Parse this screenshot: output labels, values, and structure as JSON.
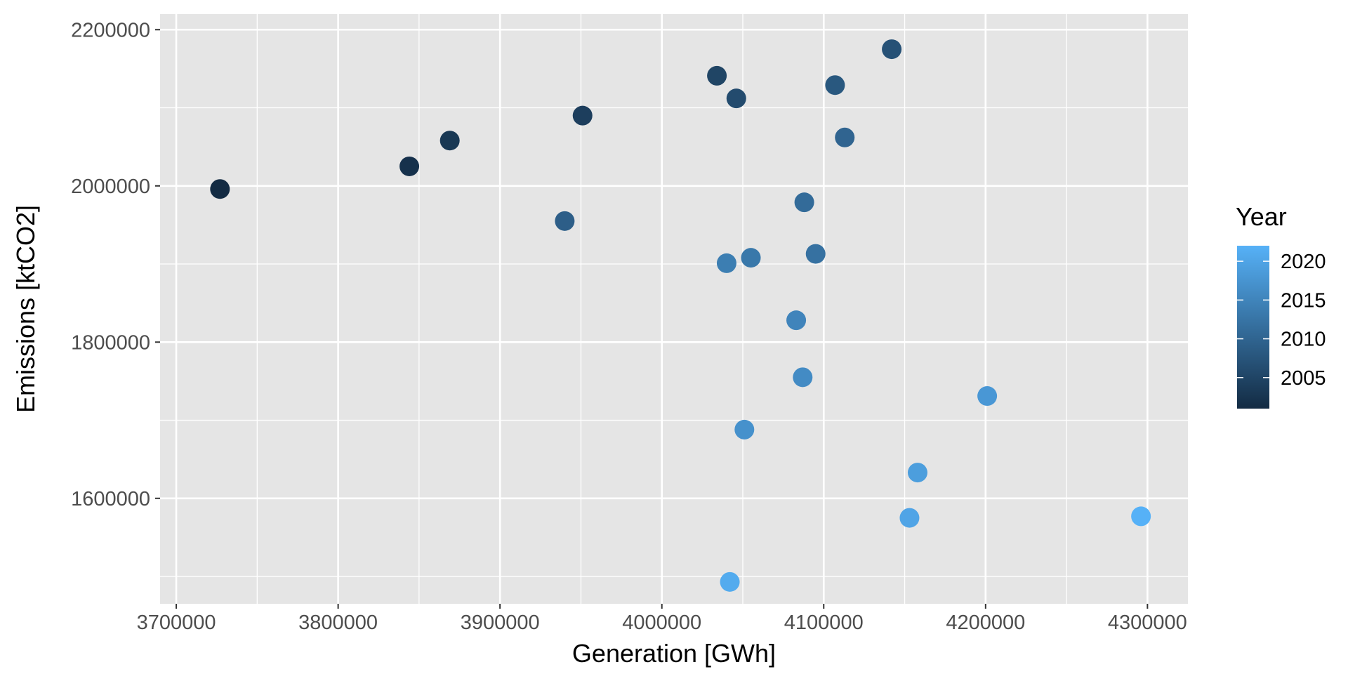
{
  "chart_data": {
    "type": "scatter",
    "title": "",
    "xlabel": "Generation [GWh]",
    "ylabel": "Emissions [ktCO2]",
    "xlim": [
      3690000,
      4325000
    ],
    "ylim": [
      1465000,
      2220000
    ],
    "x_ticks": [
      3700000,
      3800000,
      3900000,
      4000000,
      4100000,
      4200000,
      4300000
    ],
    "x_tick_labels": [
      "3700000",
      "3800000",
      "3900000",
      "4000000",
      "4100000",
      "4200000",
      "4300000"
    ],
    "y_ticks": [
      1600000,
      1800000,
      2000000,
      2200000
    ],
    "y_tick_labels": [
      "1600000",
      "1800000",
      "2000000",
      "2200000"
    ],
    "grid": true,
    "background": "#e5e5e5",
    "grid_color": "#ffffff",
    "color_scale": {
      "low": "#132b43",
      "high": "#56b1f7",
      "range": [
        2001,
        2022
      ]
    },
    "legend": {
      "title": "Year",
      "placement": "right",
      "ticks": [
        2005,
        2010,
        2015,
        2020
      ],
      "tick_labels": [
        "2005",
        "2010",
        "2015",
        "2020"
      ]
    },
    "points": [
      {
        "x": 3727000,
        "y": 1996000,
        "year": 2001
      },
      {
        "x": 3844000,
        "y": 2025000,
        "year": 2002
      },
      {
        "x": 3869000,
        "y": 2058000,
        "year": 2003
      },
      {
        "x": 3951000,
        "y": 2090000,
        "year": 2004
      },
      {
        "x": 4034000,
        "y": 2141000,
        "year": 2005
      },
      {
        "x": 4046000,
        "y": 2112000,
        "year": 2006
      },
      {
        "x": 4142000,
        "y": 2175000,
        "year": 2007
      },
      {
        "x": 4107000,
        "y": 2129000,
        "year": 2008
      },
      {
        "x": 3940000,
        "y": 1955000,
        "year": 2009
      },
      {
        "x": 4113000,
        "y": 2062000,
        "year": 2010
      },
      {
        "x": 4088000,
        "y": 1979000,
        "year": 2011
      },
      {
        "x": 4095000,
        "y": 1913000,
        "year": 2012
      },
      {
        "x": 4055000,
        "y": 1908000,
        "year": 2013
      },
      {
        "x": 4040000,
        "y": 1901000,
        "year": 2014
      },
      {
        "x": 4083000,
        "y": 1828000,
        "year": 2015
      },
      {
        "x": 4087000,
        "y": 1755000,
        "year": 2016
      },
      {
        "x": 4051000,
        "y": 1688000,
        "year": 2017
      },
      {
        "x": 4201000,
        "y": 1731000,
        "year": 2018
      },
      {
        "x": 4158000,
        "y": 1633000,
        "year": 2019
      },
      {
        "x": 4153000,
        "y": 1575000,
        "year": 2020
      },
      {
        "x": 4042000,
        "y": 1493000,
        "year": 2021
      },
      {
        "x": 4296000,
        "y": 1577000,
        "year": 2022
      }
    ]
  }
}
